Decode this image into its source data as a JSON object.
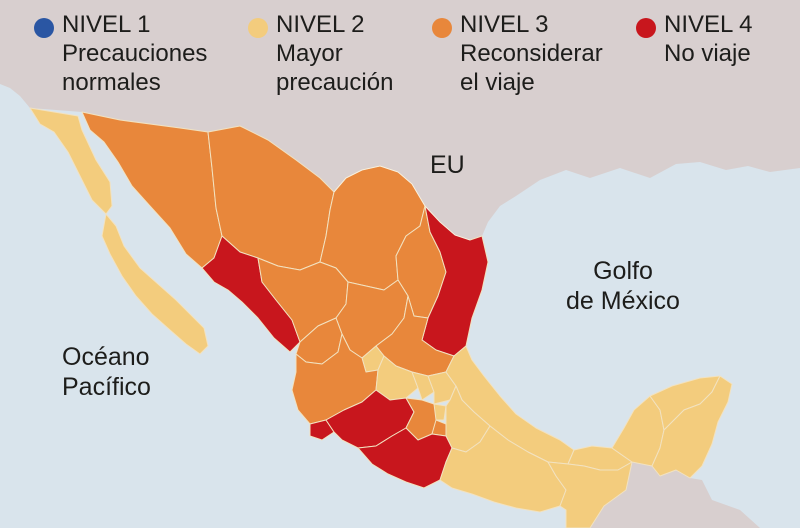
{
  "colors": {
    "sea": "#d9e4ec",
    "land_other": "#d8cfcf",
    "nivel1": "#2a56a3",
    "nivel2": "#f3cc7d",
    "nivel3": "#e8873b",
    "nivel4": "#c8161d"
  },
  "legend": [
    {
      "level": "NIVEL 1",
      "line1": "Precauciones",
      "line2": "normales",
      "color_key": "nivel1"
    },
    {
      "level": "NIVEL 2",
      "line1": "Mayor",
      "line2": "precaución",
      "color_key": "nivel2"
    },
    {
      "level": "NIVEL 3",
      "line1": "Reconsiderar",
      "line2": "el viaje",
      "color_key": "nivel3"
    },
    {
      "level": "NIVEL 4",
      "line1": "No viaje",
      "line2": "",
      "color_key": "nivel4"
    }
  ],
  "labels": {
    "usa": "EU",
    "gulf_line1": "Golfo",
    "gulf_line2": "de México",
    "ocean_line1": "Océano",
    "ocean_line2": "Pacífico"
  }
}
